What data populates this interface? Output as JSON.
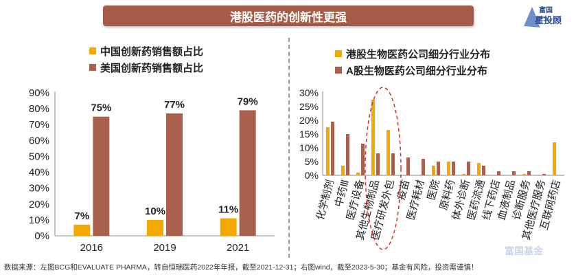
{
  "banner": {
    "title": "港股医药的创新性更强"
  },
  "brand": {
    "logo_text": "富国星投顾",
    "watermark": "富国基金"
  },
  "footnote": "数据来源：左图BCG和EVALUATE PHARMA，转自恒瑞医药2022年年报，截至2021-12-31；右图wind，截至2023-5-30；基金有风险，投资需谨慎！",
  "colors": {
    "orange": "#f5a800",
    "brown": "#a9614d",
    "banner": "#a65a48",
    "highlight": "#e02a2a"
  },
  "chart_data": [
    {
      "type": "bar",
      "categories": [
        "2016",
        "2019",
        "2021"
      ],
      "series": [
        {
          "name": "中国创新药销售额占比",
          "values": [
            7,
            10,
            11
          ],
          "labels": [
            "7%",
            "10%",
            "11%"
          ],
          "color": "#f5a800"
        },
        {
          "name": "美国创新药销售额占比",
          "values": [
            75,
            77,
            79
          ],
          "labels": [
            "75%",
            "77%",
            "79%"
          ],
          "color": "#a9614d"
        }
      ],
      "yticks": [
        "0%",
        "10%",
        "20%",
        "30%",
        "40%",
        "50%",
        "60%",
        "70%",
        "80%",
        "90%"
      ],
      "ylim": [
        0,
        90
      ],
      "grid": false
    },
    {
      "type": "bar",
      "categories": [
        "化学制剂",
        "中药Ⅲ",
        "医疗设备",
        "其他生物制品",
        "医疗研发外包",
        "疫苗",
        "医疗耗材",
        "医院",
        "原料药",
        "体外诊断",
        "医药流通",
        "线下药店",
        "血液制品",
        "诊断服务",
        "其他医疗服务",
        "互联网药店"
      ],
      "series": [
        {
          "name": "港股生物医药公司细分行业分布",
          "values": [
            17.5,
            3.5,
            1,
            27.5,
            16.5,
            0,
            0,
            3.5,
            5,
            0.5,
            4.5,
            0,
            0,
            0.5,
            0,
            12
          ],
          "color": "#f5a800"
        },
        {
          "name": "A股生物医药公司细分行业分布",
          "values": [
            19.5,
            15,
            11.5,
            8,
            8,
            6.5,
            6,
            5,
            5,
            5,
            3.5,
            1.5,
            1.5,
            1.5,
            0.5,
            0
          ],
          "color": "#a9614d"
        }
      ],
      "yticks": [
        "0%",
        "5%",
        "10%",
        "15%",
        "20%",
        "25%",
        "30%"
      ],
      "ylim": [
        0,
        30
      ],
      "grid": false
    }
  ]
}
